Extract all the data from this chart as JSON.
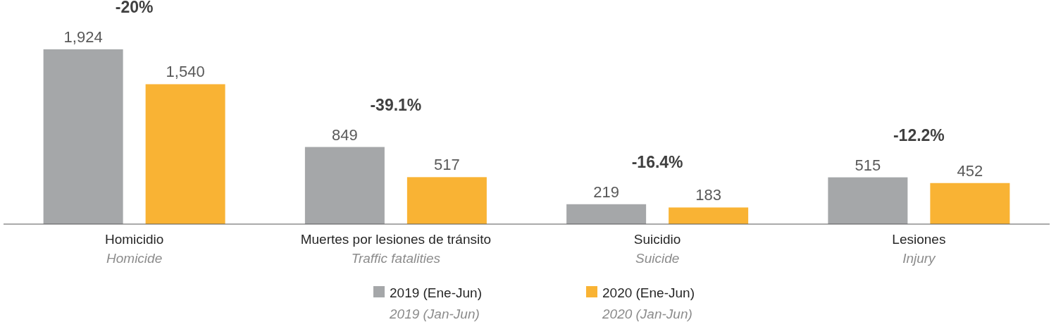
{
  "chart_data": {
    "type": "bar",
    "categories": [
      "Homicidio\nHomicide",
      "Muertes por lesiones de tránsito\nTraffic fatalities",
      "Suicidio\nSuicide",
      "Lesiones\nInjury"
    ],
    "series": [
      {
        "name": "2019 (Ene-Jun)\n2019 (Jan-Jun)",
        "color": "#a5a7a9",
        "values": [
          1924,
          849,
          219,
          515
        ],
        "value_labels": [
          "1,924",
          "849",
          "219",
          "515"
        ]
      },
      {
        "name": "2020 (Ene-Jun)\n2020 (Jan-Jun)",
        "color": "#f9b334",
        "values": [
          1540,
          517,
          183,
          452
        ],
        "value_labels": [
          "1,540",
          "517",
          "183",
          "452"
        ]
      }
    ],
    "legend": "bottom",
    "annotations": [
      "-20%",
      "-39.1%",
      "-16.4%",
      "-12.2%"
    ]
  }
}
